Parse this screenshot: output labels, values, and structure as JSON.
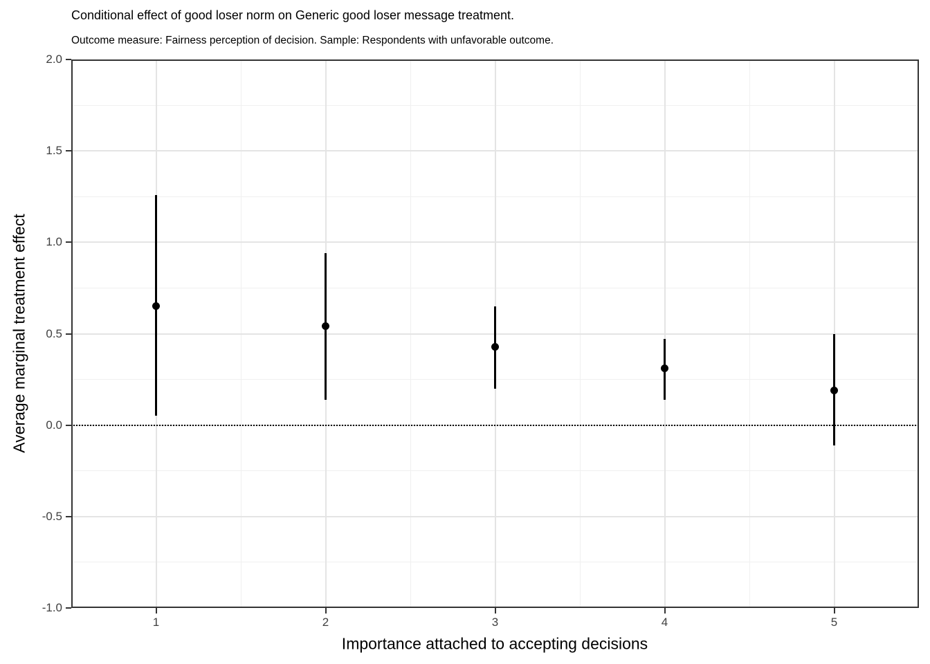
{
  "chart_data": {
    "type": "scatter",
    "subtype": "pointrange",
    "title": "Conditional effect of good loser norm on Generic good loser message treatment.",
    "subtitle": "Outcome measure: Fairness perception of decision. Sample: Respondents with unfavorable outcome.",
    "xlabel": "Importance attached to accepting decisions",
    "ylabel": "Average marginal treatment effect",
    "xlim": [
      0.5,
      5.5
    ],
    "ylim": [
      -1.0,
      2.0
    ],
    "xticks": {
      "values": [
        1,
        2,
        3,
        4,
        5
      ],
      "labels": [
        "1",
        "2",
        "3",
        "4",
        "5"
      ]
    },
    "yticks": {
      "values": [
        2.0,
        1.5,
        1.0,
        0.5,
        0.0,
        -0.5,
        -1.0
      ],
      "labels": [
        "2.0",
        "1.5",
        "1.0",
        "0.5",
        "0.0",
        "-0.5",
        "-1.0"
      ]
    },
    "x_minor_gridlines": [
      1.5,
      2.5,
      3.5,
      4.5
    ],
    "y_minor_gridlines": [
      1.75,
      1.25,
      0.75,
      0.25,
      -0.25,
      -0.75
    ],
    "grid": "on",
    "legend": "none",
    "reference_line": {
      "y": 0.0,
      "linetype": "dotted",
      "color": "#000000"
    },
    "points": [
      {
        "x": 1,
        "estimate": 0.65,
        "ci_low": 0.05,
        "ci_high": 1.26
      },
      {
        "x": 2,
        "estimate": 0.54,
        "ci_low": 0.14,
        "ci_high": 0.94
      },
      {
        "x": 3,
        "estimate": 0.43,
        "ci_low": 0.2,
        "ci_high": 0.65
      },
      {
        "x": 4,
        "estimate": 0.31,
        "ci_low": 0.14,
        "ci_high": 0.47
      },
      {
        "x": 5,
        "estimate": 0.19,
        "ci_low": -0.11,
        "ci_high": 0.5
      }
    ],
    "colors": {
      "point": "#000000",
      "interval": "#000000",
      "grid_major": "#e4e4e4",
      "grid_minor": "#f0f0f0",
      "panel_border": "#333333",
      "axis_text": "#404040",
      "axis_title": "#000000",
      "background": "#ffffff"
    }
  }
}
